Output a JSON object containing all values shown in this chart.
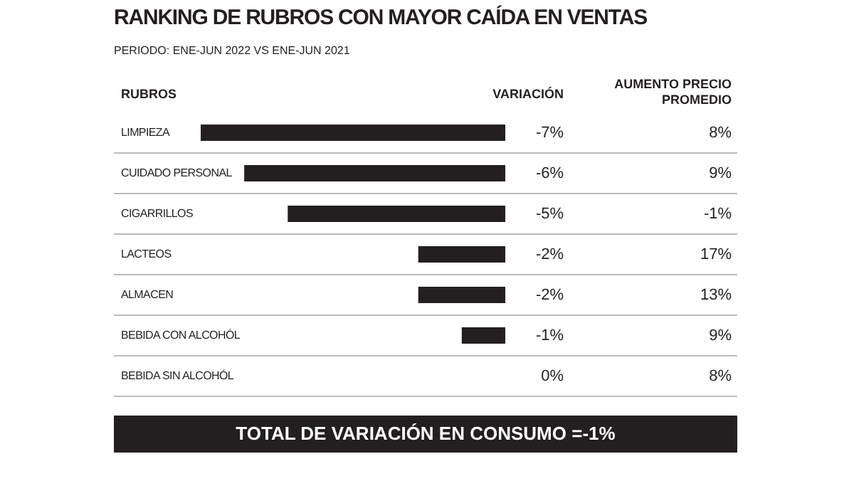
{
  "chart_data": {
    "type": "bar",
    "orientation": "horizontal",
    "title": "RANKING DE RUBROS CON MAYOR CAÍDA EN VENTAS",
    "subtitle": "PERIODO: ENE-JUN 2022 VS ENE-JUN 2021",
    "ylabel": "RUBROS",
    "xlabel": "VARIACIÓN",
    "categories": [
      "LIMPIEZA",
      "CUIDADO PERSONAL",
      "CIGARRILLOS",
      "LACTEOS",
      "ALMACEN",
      "BEBIDA CON ALCOHÓL",
      "BEBIDA SIN ALCOHÓL"
    ],
    "values": [
      -7,
      -6,
      -5,
      -2,
      -2,
      -1,
      0
    ],
    "value_labels": [
      "-7%",
      "-6%",
      "-5%",
      "-2%",
      "-2%",
      "-1%",
      "0%"
    ],
    "color": "#231f20",
    "legend": false,
    "annotations": [
      "AUMENTO PRECIO PROMEDIO",
      "8%",
      "9%",
      "-1%",
      "17%",
      "13%",
      "9%",
      "8%",
      "TOTAL DE VARIACIÓN EN CONSUMO =-1%"
    ]
  }
}
